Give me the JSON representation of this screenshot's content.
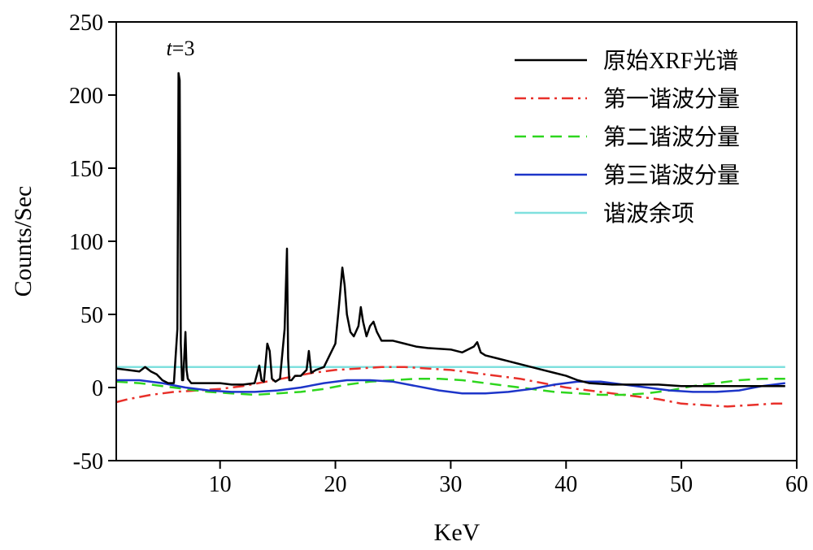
{
  "chart_data": {
    "type": "line",
    "title": "",
    "xlabel": "KeV",
    "ylabel": "Counts/Sec",
    "xlim": [
      1,
      60
    ],
    "ylim": [
      -50,
      250
    ],
    "x_ticks": [
      10,
      20,
      30,
      40,
      50,
      60
    ],
    "y_ticks": [
      250,
      200,
      150,
      100,
      50,
      0,
      -50
    ],
    "annotation": {
      "text": "t=3",
      "italic_part": "t",
      "rest": "=3",
      "x": 6.8,
      "y": 228
    },
    "legend_position": "top-right",
    "series": [
      {
        "name": "原始XRF光谱",
        "color": "#000000",
        "dash": "solid",
        "x": [
          1,
          2,
          3,
          3.5,
          4,
          4.5,
          5,
          5.5,
          6,
          6.3,
          6.4,
          6.5,
          6.6,
          6.7,
          6.8,
          7.0,
          7.1,
          7.2,
          7.3,
          7.5,
          8,
          9,
          10,
          11,
          12,
          13,
          13.4,
          13.6,
          13.8,
          14.1,
          14.3,
          14.5,
          14.8,
          15.2,
          15.6,
          15.8,
          15.9,
          16.0,
          16.2,
          16.5,
          17.0,
          17.5,
          17.7,
          17.9,
          18.3,
          19,
          19.5,
          20,
          20.3,
          20.6,
          20.8,
          21.0,
          21.3,
          21.6,
          22.0,
          22.2,
          22.4,
          22.7,
          23.0,
          23.3,
          23.6,
          24,
          25,
          26,
          27,
          28,
          30,
          31,
          32,
          32.3,
          32.6,
          33,
          34,
          35,
          36,
          37,
          38,
          39,
          40,
          41,
          42,
          44,
          46,
          48,
          50,
          52,
          54,
          56,
          58,
          59
        ],
        "y": [
          13,
          12,
          11,
          14,
          11,
          9,
          5,
          3,
          3,
          40,
          215,
          210,
          30,
          5,
          5,
          38,
          12,
          6,
          5,
          3,
          3,
          3,
          3,
          2,
          2,
          3,
          15,
          5,
          4,
          30,
          25,
          6,
          4,
          6,
          40,
          95,
          20,
          5,
          5,
          8,
          8,
          12,
          25,
          10,
          12,
          14,
          22,
          30,
          55,
          82,
          70,
          50,
          38,
          35,
          42,
          55,
          45,
          35,
          42,
          45,
          38,
          32,
          32,
          30,
          28,
          27,
          26,
          24,
          28,
          31,
          24,
          22,
          20,
          18,
          16,
          14,
          12,
          10,
          8,
          5,
          3,
          2,
          2,
          2,
          1,
          1,
          1,
          1,
          1,
          1
        ]
      },
      {
        "name": "第一谐波分量",
        "color": "#e8302a",
        "dash": "dashdot",
        "x": [
          1,
          2,
          4,
          6,
          8,
          10,
          12,
          14,
          16,
          18,
          20,
          22,
          24,
          26,
          28,
          30,
          32,
          34,
          36,
          38,
          40,
          42,
          44,
          46,
          48,
          50,
          52,
          54,
          56,
          58,
          59
        ],
        "y": [
          -10,
          -8,
          -5,
          -3,
          -2,
          -1,
          1,
          4,
          7,
          10,
          12,
          13,
          14,
          14,
          13,
          12,
          10,
          8,
          6,
          3,
          0,
          -2,
          -4,
          -6,
          -8,
          -11,
          -12,
          -13,
          -12,
          -11,
          -11
        ]
      },
      {
        "name": "第二谐波分量",
        "color": "#2ed61e",
        "dash": "dashed",
        "x": [
          1,
          3,
          5,
          7,
          9,
          11,
          13,
          15,
          17,
          19,
          21,
          23,
          25,
          27,
          29,
          31,
          33,
          35,
          37,
          39,
          41,
          43,
          45,
          47,
          49,
          51,
          53,
          55,
          57,
          59
        ],
        "y": [
          4,
          3,
          1,
          -1,
          -3,
          -4,
          -5,
          -4,
          -3,
          -1,
          2,
          4,
          5,
          6,
          6,
          5,
          3,
          1,
          -1,
          -3,
          -4,
          -5,
          -5,
          -4,
          -2,
          1,
          3,
          5,
          6,
          6
        ]
      },
      {
        "name": "第三谐波分量",
        "color": "#1d35c9",
        "dash": "solid",
        "x": [
          1,
          3,
          5,
          7,
          9,
          11,
          13,
          15,
          17,
          19,
          21,
          23,
          25,
          27,
          29,
          31,
          33,
          35,
          37,
          39,
          41,
          43,
          45,
          47,
          49,
          51,
          53,
          55,
          57,
          59
        ],
        "y": [
          5,
          5,
          3,
          0,
          -2,
          -3,
          -3,
          -2,
          0,
          3,
          5,
          5,
          4,
          1,
          -2,
          -4,
          -4,
          -3,
          -1,
          2,
          4,
          4,
          2,
          0,
          -2,
          -3,
          -3,
          -2,
          1,
          3
        ]
      },
      {
        "name": "谐波余项",
        "color": "#7fe0de",
        "dash": "solid",
        "x": [
          1,
          59
        ],
        "y": [
          14,
          14
        ]
      }
    ]
  }
}
